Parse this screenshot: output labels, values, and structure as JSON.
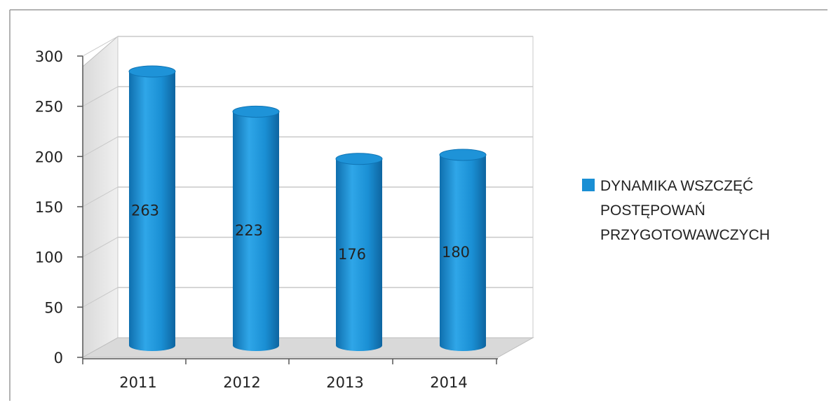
{
  "chart_data": {
    "type": "bar",
    "style": "3d-cylinder",
    "categories": [
      "2011",
      "2012",
      "2013",
      "2014"
    ],
    "series": [
      {
        "name": "DYNAMIKA WSZCZĘĆ POSTĘPOWAŃ PRZYGOTOWAWCZYCH",
        "name_lines": [
          "DYNAMIKA WSZCZĘĆ",
          "POSTĘPOWAŃ",
          "PRZYGOTOWAWCZYCH"
        ],
        "values": [
          263,
          223,
          176,
          180
        ],
        "color": "#1a8fd4"
      }
    ],
    "data_labels": [
      "263",
      "223",
      "176",
      "180"
    ],
    "yticks": [
      "0",
      "50",
      "100",
      "150",
      "200",
      "250",
      "300"
    ],
    "ylim": [
      0,
      300
    ],
    "grid": true,
    "legend_position": "right"
  }
}
